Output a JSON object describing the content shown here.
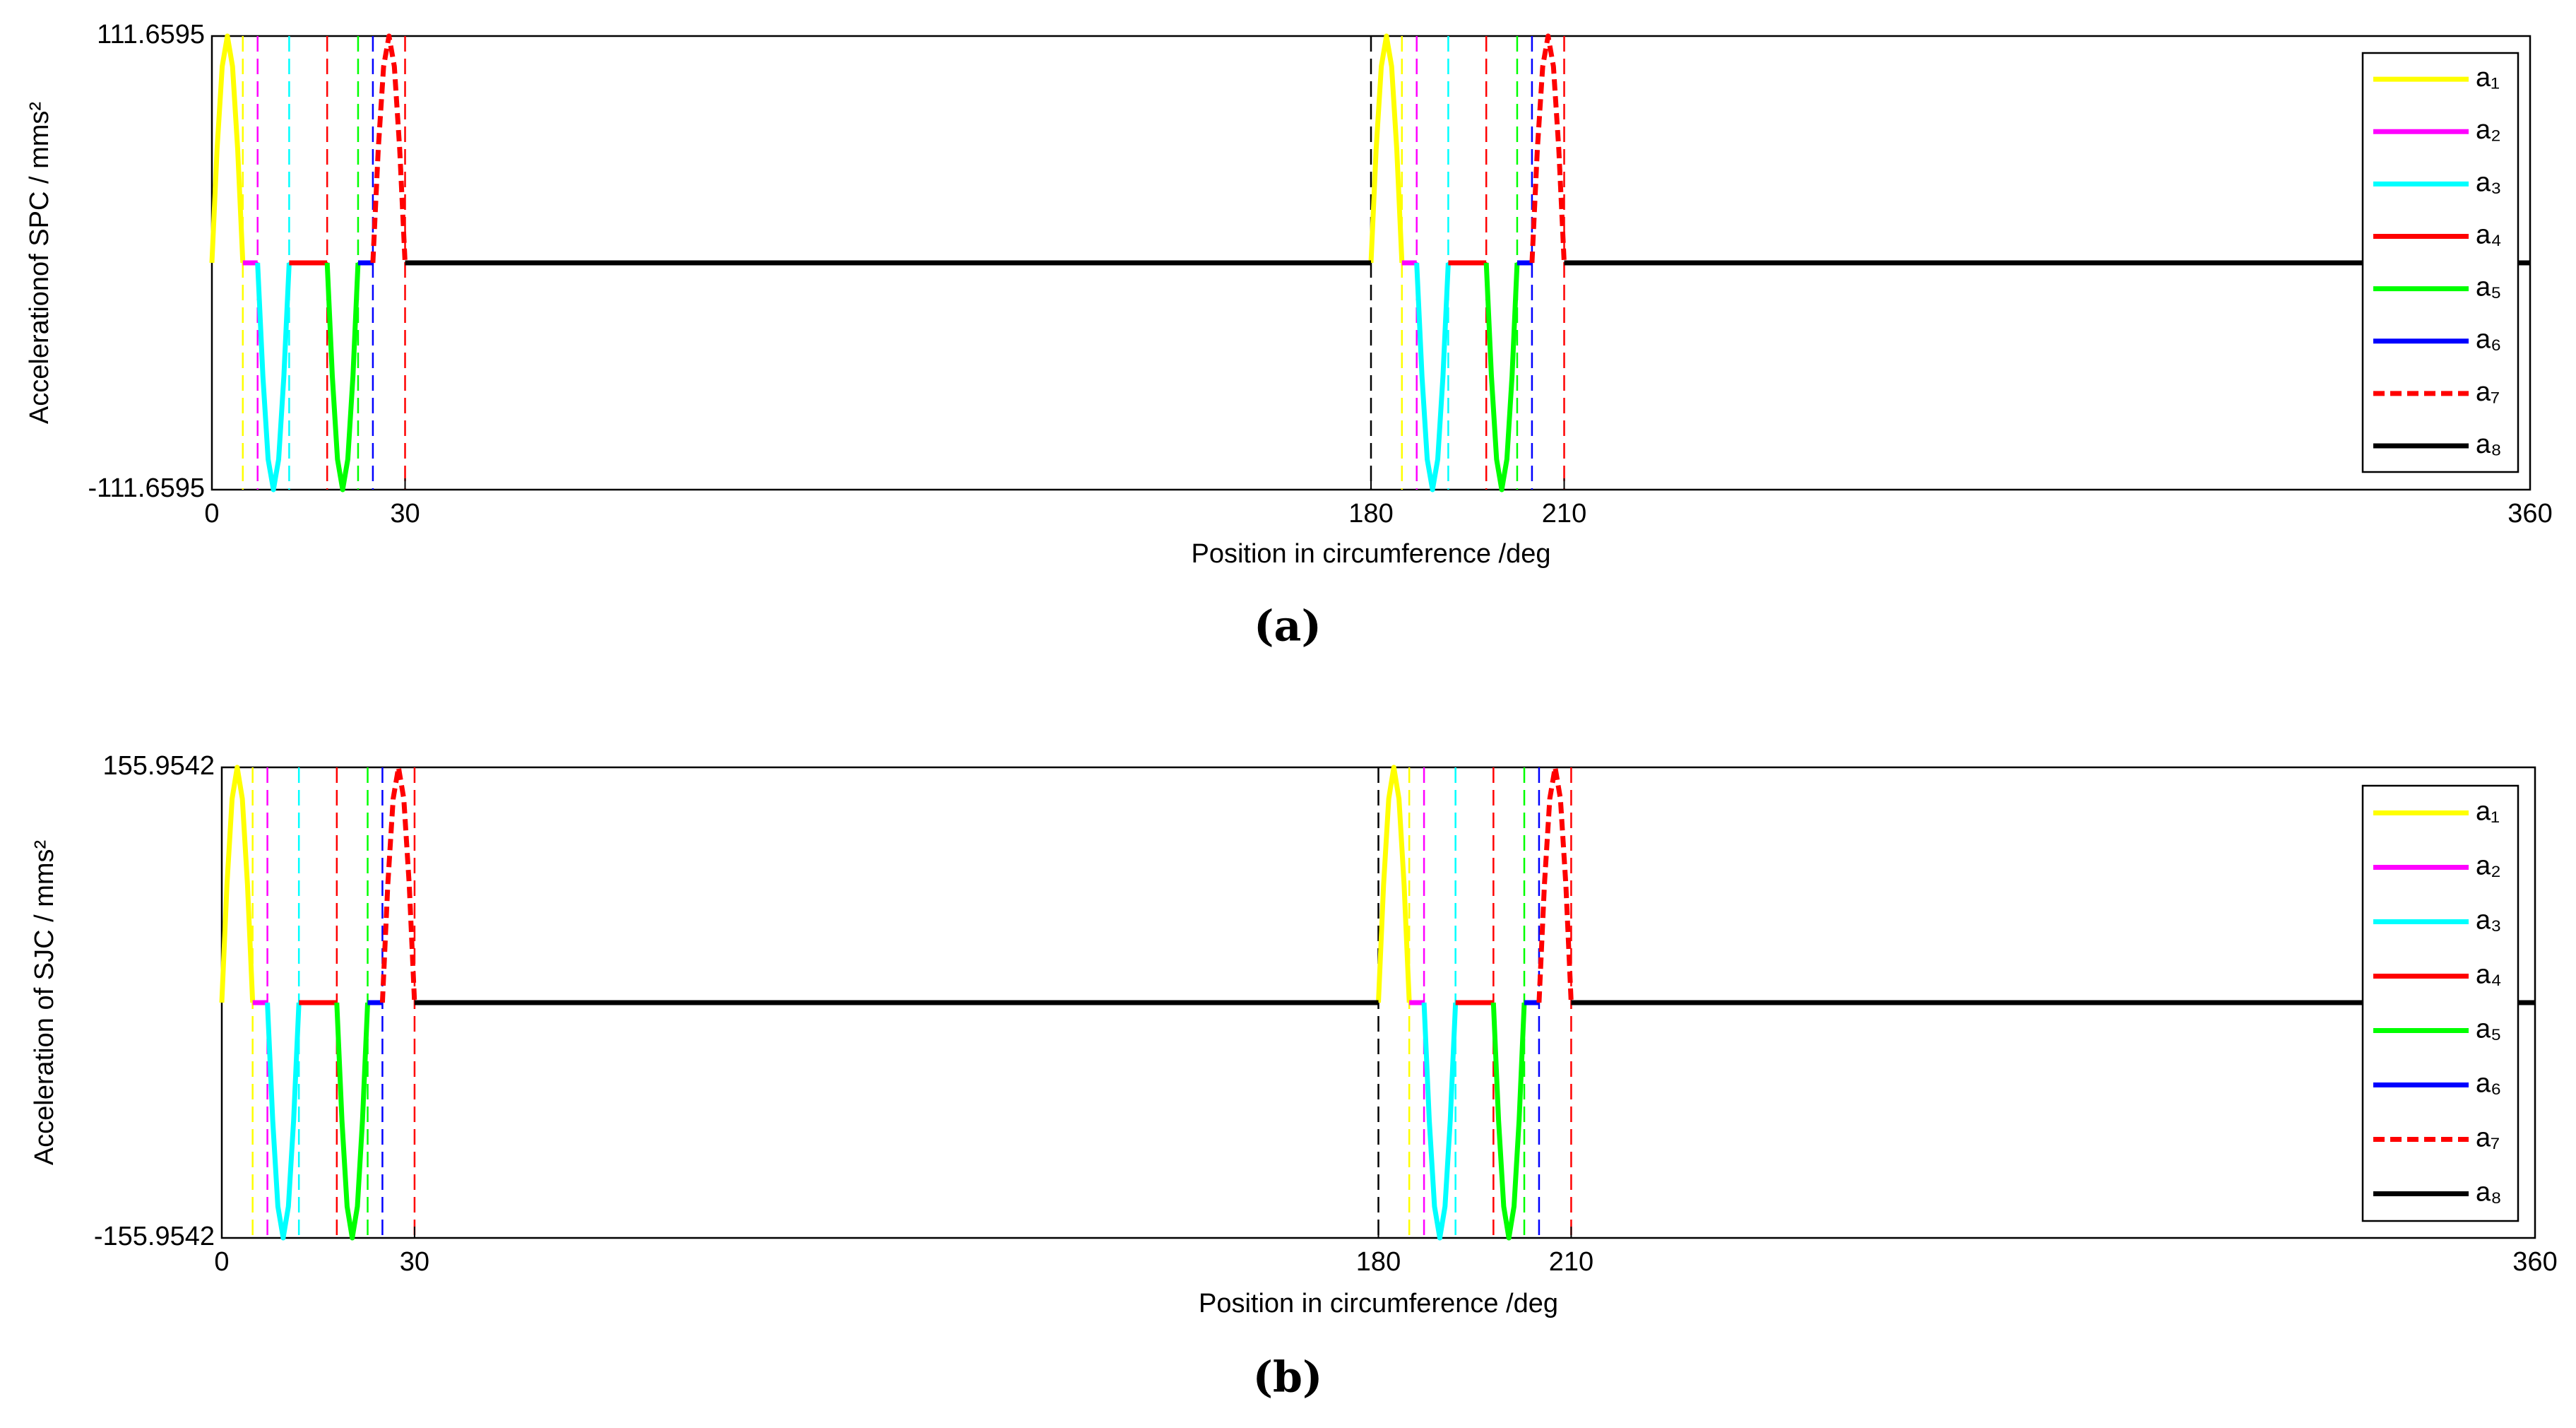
{
  "chart_data": [
    {
      "type": "line",
      "caption": "(a)",
      "xlabel": "Position in circumference /deg",
      "ylabel": "Accelerationof SPC / mms²",
      "xlim": [
        0,
        360
      ],
      "ylim": [
        -111.6595,
        111.6595
      ],
      "xticks": [
        0,
        30,
        180,
        210,
        360
      ],
      "yticks": [
        -111.6595,
        111.6595
      ],
      "legend": "right",
      "series": [
        {
          "name": "a₁",
          "color": "#ffff00",
          "x": [
            0,
            0.8,
            1.6,
            2.4,
            3.2,
            4,
            4.8,
            null,
            180,
            180.8,
            181.6,
            182.4,
            183.2,
            184,
            184.8
          ],
          "values": [
            0,
            55.83,
            96.7,
            111.6595,
            96.7,
            55.83,
            0,
            null,
            0,
            55.83,
            96.7,
            111.6595,
            96.7,
            55.83,
            0
          ]
        },
        {
          "name": "a₂",
          "color": "#ff00ff",
          "x": [
            4.8,
            7.1,
            null,
            184.8,
            187.1
          ],
          "values": [
            0,
            0,
            null,
            0,
            0
          ]
        },
        {
          "name": "a₃",
          "color": "#00ffff",
          "x": [
            7.1,
            7.92,
            8.73,
            9.55,
            10.37,
            11.18,
            12,
            null,
            187.1,
            187.92,
            188.73,
            189.55,
            190.37,
            191.18,
            192
          ],
          "values": [
            0,
            -55.83,
            -96.7,
            -111.6595,
            -96.7,
            -55.83,
            0,
            null,
            0,
            -55.83,
            -96.7,
            -111.6595,
            -96.7,
            -55.83,
            0
          ]
        },
        {
          "name": "a₄",
          "color": "#ff0000",
          "x": [
            12,
            17.9,
            null,
            192,
            197.9
          ],
          "values": [
            0,
            0,
            null,
            0,
            0
          ]
        },
        {
          "name": "a₅",
          "color": "#00ff00",
          "x": [
            17.9,
            18.7,
            19.5,
            20.3,
            21.1,
            21.9,
            22.7,
            null,
            197.9,
            198.7,
            199.5,
            200.3,
            201.1,
            201.9,
            202.7
          ],
          "values": [
            0,
            -55.83,
            -96.7,
            -111.6595,
            -96.7,
            -55.83,
            0,
            null,
            0,
            -55.83,
            -96.7,
            -111.6595,
            -96.7,
            -55.83,
            0
          ]
        },
        {
          "name": "a₆",
          "color": "#0000ff",
          "x": [
            22.7,
            25,
            null,
            202.7,
            205
          ],
          "values": [
            0,
            0,
            null,
            0,
            0
          ]
        },
        {
          "name": "a₇",
          "color": "#ff0000",
          "dash": true,
          "x": [
            25,
            25.83,
            26.67,
            27.5,
            28.33,
            29.17,
            30,
            null,
            205,
            205.83,
            206.67,
            207.5,
            208.33,
            209.17,
            210
          ],
          "values": [
            0,
            55.83,
            96.7,
            111.6595,
            96.7,
            55.83,
            0,
            null,
            0,
            55.83,
            96.7,
            111.6595,
            96.7,
            55.83,
            0
          ]
        },
        {
          "name": "a₈",
          "color": "#000000",
          "x": [
            30,
            180,
            null,
            210,
            360
          ],
          "values": [
            0,
            0,
            null,
            0,
            0
          ]
        }
      ],
      "markers": [
        {
          "x": 4.8,
          "color": "#ffff00"
        },
        {
          "x": 7.1,
          "color": "#ff00ff"
        },
        {
          "x": 12,
          "color": "#00ffff"
        },
        {
          "x": 17.9,
          "color": "#ff0000"
        },
        {
          "x": 22.7,
          "color": "#00ff00"
        },
        {
          "x": 25,
          "color": "#0000ff"
        },
        {
          "x": 30,
          "color": "#ff0000"
        },
        {
          "x": 180,
          "color": "#000000"
        },
        {
          "x": 184.8,
          "color": "#ffff00"
        },
        {
          "x": 187.1,
          "color": "#ff00ff"
        },
        {
          "x": 192,
          "color": "#00ffff"
        },
        {
          "x": 197.9,
          "color": "#ff0000"
        },
        {
          "x": 202.7,
          "color": "#00ff00"
        },
        {
          "x": 205,
          "color": "#0000ff"
        },
        {
          "x": 210,
          "color": "#ff0000"
        }
      ]
    },
    {
      "type": "line",
      "caption": "(b)",
      "xlabel": "Position in circumference /deg",
      "ylabel": "Acceleration of SJC / mms²",
      "xlim": [
        0,
        360
      ],
      "ylim": [
        -155.9542,
        155.9542
      ],
      "xticks": [
        0,
        30,
        180,
        210,
        360
      ],
      "yticks": [
        -155.9542,
        155.9542
      ],
      "legend": "right",
      "series": [
        {
          "name": "a₁",
          "color": "#ffff00",
          "x": [
            0,
            0.8,
            1.6,
            2.4,
            3.2,
            4,
            4.8,
            null,
            180,
            180.8,
            181.6,
            182.4,
            183.2,
            184,
            184.8
          ],
          "values": [
            0,
            77.98,
            135.06,
            155.9542,
            135.06,
            77.98,
            0,
            null,
            0,
            77.98,
            135.06,
            155.9542,
            135.06,
            77.98,
            0
          ]
        },
        {
          "name": "a₂",
          "color": "#ff00ff",
          "x": [
            4.8,
            7.1,
            null,
            184.8,
            187.1
          ],
          "values": [
            0,
            0,
            null,
            0,
            0
          ]
        },
        {
          "name": "a₃",
          "color": "#00ffff",
          "x": [
            7.1,
            7.92,
            8.73,
            9.55,
            10.37,
            11.18,
            12,
            null,
            187.1,
            187.92,
            188.73,
            189.55,
            190.37,
            191.18,
            192
          ],
          "values": [
            0,
            -77.98,
            -135.06,
            -155.9542,
            -135.06,
            -77.98,
            0,
            null,
            0,
            -77.98,
            -135.06,
            -155.9542,
            -135.06,
            -77.98,
            0
          ]
        },
        {
          "name": "a₄",
          "color": "#ff0000",
          "x": [
            12,
            17.9,
            null,
            192,
            197.9
          ],
          "values": [
            0,
            0,
            null,
            0,
            0
          ]
        },
        {
          "name": "a₅",
          "color": "#00ff00",
          "x": [
            17.9,
            18.7,
            19.5,
            20.3,
            21.1,
            21.9,
            22.7,
            null,
            197.9,
            198.7,
            199.5,
            200.3,
            201.1,
            201.9,
            202.7
          ],
          "values": [
            0,
            -77.98,
            -135.06,
            -155.9542,
            -135.06,
            -77.98,
            0,
            null,
            0,
            -77.98,
            -135.06,
            -155.9542,
            -135.06,
            -77.98,
            0
          ]
        },
        {
          "name": "a₆",
          "color": "#0000ff",
          "x": [
            22.7,
            25,
            null,
            202.7,
            205
          ],
          "values": [
            0,
            0,
            null,
            0,
            0
          ]
        },
        {
          "name": "a₇",
          "color": "#ff0000",
          "dash": true,
          "x": [
            25,
            25.83,
            26.67,
            27.5,
            28.33,
            29.17,
            30,
            null,
            205,
            205.83,
            206.67,
            207.5,
            208.33,
            209.17,
            210
          ],
          "values": [
            0,
            77.98,
            135.06,
            155.9542,
            135.06,
            77.98,
            0,
            null,
            0,
            77.98,
            135.06,
            155.9542,
            135.06,
            77.98,
            0
          ]
        },
        {
          "name": "a₈",
          "color": "#000000",
          "x": [
            30,
            180,
            null,
            210,
            360
          ],
          "values": [
            0,
            0,
            null,
            0,
            0
          ]
        }
      ],
      "markers": [
        {
          "x": 4.8,
          "color": "#ffff00"
        },
        {
          "x": 7.1,
          "color": "#ff00ff"
        },
        {
          "x": 12,
          "color": "#00ffff"
        },
        {
          "x": 17.9,
          "color": "#ff0000"
        },
        {
          "x": 22.7,
          "color": "#00ff00"
        },
        {
          "x": 25,
          "color": "#0000ff"
        },
        {
          "x": 30,
          "color": "#ff0000"
        },
        {
          "x": 180,
          "color": "#000000"
        },
        {
          "x": 184.8,
          "color": "#ffff00"
        },
        {
          "x": 187.1,
          "color": "#ff00ff"
        },
        {
          "x": 192,
          "color": "#00ffff"
        },
        {
          "x": 197.9,
          "color": "#ff0000"
        },
        {
          "x": 202.7,
          "color": "#00ff00"
        },
        {
          "x": 205,
          "color": "#0000ff"
        },
        {
          "x": 210,
          "color": "#ff0000"
        }
      ]
    }
  ]
}
